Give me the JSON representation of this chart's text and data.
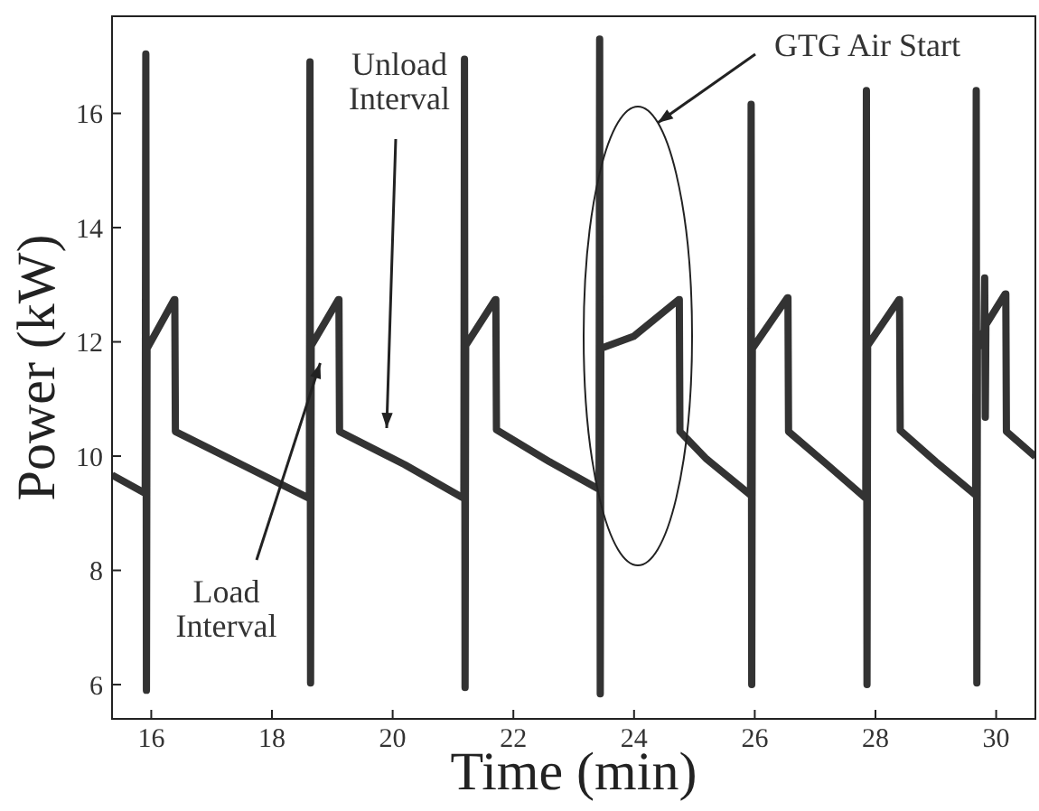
{
  "chart_data": {
    "type": "line",
    "xlabel": "Time (min)",
    "ylabel": "Power (kW)",
    "xlim": [
      15.35,
      30.65
    ],
    "ylim": [
      5.4,
      17.7
    ],
    "xticks": [
      16,
      18,
      20,
      22,
      24,
      26,
      28,
      30
    ],
    "yticks": [
      6,
      8,
      10,
      12,
      14,
      16
    ],
    "grid": false,
    "legend": false,
    "marker": "none",
    "line_style": "solid",
    "series": [
      {
        "color": "#333333",
        "x": [
          15.35,
          15.9,
          15.91,
          15.92,
          15.93,
          15.94,
          16.38,
          16.39,
          16.4,
          17.5,
          18.62,
          18.63,
          18.64,
          18.65,
          18.66,
          19.1,
          19.11,
          19.12,
          20.2,
          21.18,
          21.19,
          21.2,
          21.21,
          21.22,
          21.7,
          21.71,
          21.72,
          22.6,
          23.42,
          23.43,
          23.44,
          23.45,
          23.46,
          24.0,
          24.74,
          24.75,
          24.76,
          25.2,
          25.93,
          25.94,
          25.95,
          25.96,
          25.97,
          26.54,
          26.55,
          26.56,
          27.2,
          27.84,
          27.85,
          27.86,
          27.87,
          27.88,
          28.39,
          28.4,
          28.41,
          29.0,
          29.66,
          29.67,
          29.68,
          29.69,
          29.7,
          29.8,
          29.81,
          29.82,
          29.83,
          30.15,
          30.16,
          30.17,
          30.65
        ],
        "values": [
          9.67,
          9.35,
          17.04,
          5.9,
          11.9,
          11.9,
          12.74,
          12.74,
          10.43,
          9.85,
          9.26,
          16.9,
          6.03,
          11.95,
          11.95,
          12.74,
          12.74,
          10.43,
          9.85,
          9.26,
          16.95,
          5.95,
          11.95,
          11.95,
          12.74,
          12.74,
          10.46,
          9.9,
          9.42,
          17.3,
          5.84,
          11.89,
          11.89,
          12.1,
          12.74,
          12.74,
          10.43,
          9.95,
          9.32,
          16.16,
          6.0,
          11.9,
          11.9,
          12.77,
          12.77,
          10.43,
          9.85,
          9.26,
          16.4,
          6.0,
          11.95,
          11.95,
          12.74,
          12.74,
          10.45,
          9.9,
          9.32,
          16.4,
          6.03,
          11.9,
          11.9,
          12.2,
          13.12,
          10.68,
          12.3,
          12.84,
          12.84,
          10.43,
          9.99
        ]
      }
    ],
    "annotations": [
      "Unload\nInterval",
      {
        "text": "Load\nInterval",
        "x": 18.8,
        "y": 11.63
      },
      "GTG Air Start"
    ]
  }
}
